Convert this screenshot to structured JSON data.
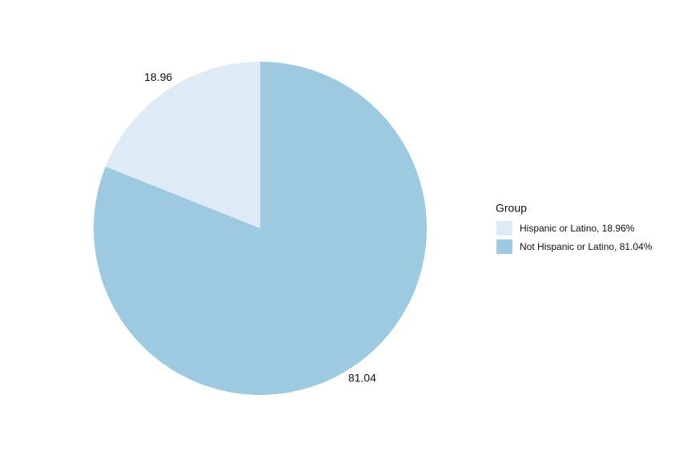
{
  "chart_data": {
    "type": "pie",
    "categories": [
      "Hispanic or Latino, 18.96%",
      "Not Hispanic or Latino, 81.04%"
    ],
    "values": [
      18.96,
      81.04
    ],
    "colors": [
      "#deebf7",
      "#9ecae1"
    ],
    "legend_title": "Group",
    "legend": "right"
  }
}
